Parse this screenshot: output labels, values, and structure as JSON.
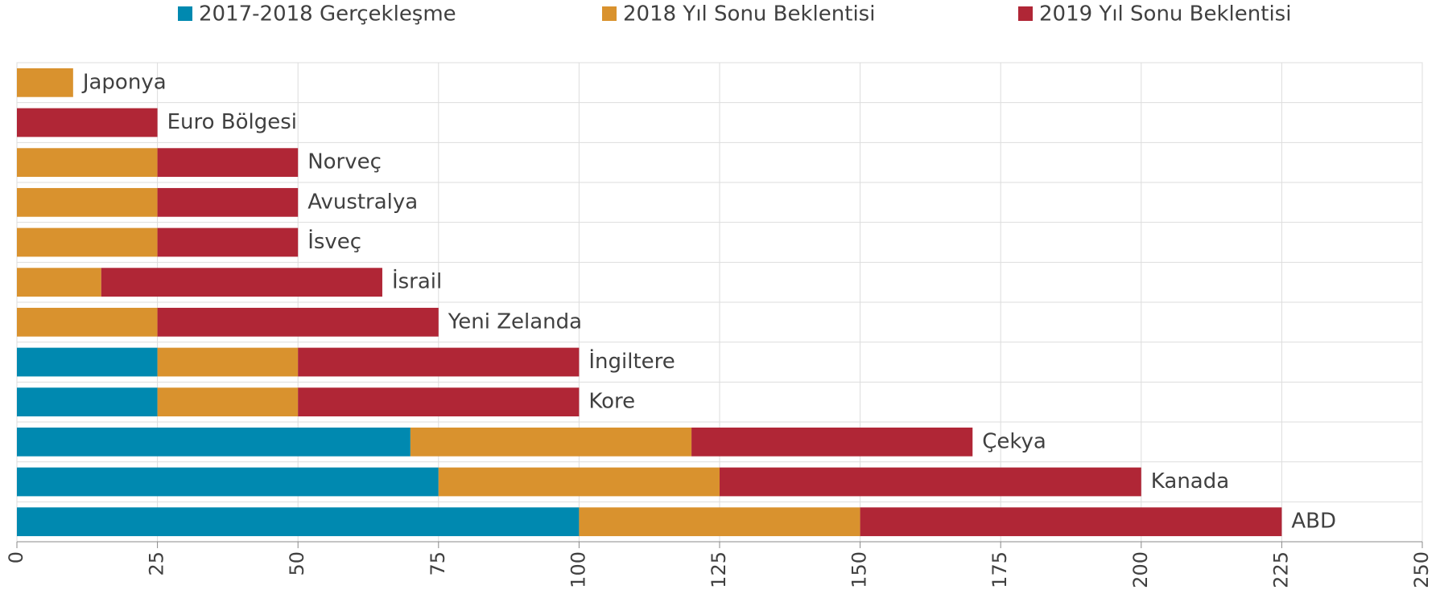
{
  "chart_data": {
    "type": "stacked-barh",
    "categories": [
      "Japonya",
      "Euro Bölgesi",
      "Norveç",
      "Avustralya",
      "İsveç",
      "İsrail",
      "Yeni Zelanda",
      "İngiltere",
      "Kore",
      "Çekya",
      "Kanada",
      "ABD"
    ],
    "series": [
      {
        "name": "2017-2018 Gerçekleşme",
        "color": "#0089b0",
        "values": [
          0,
          0,
          0,
          0,
          0,
          0,
          0,
          25,
          25,
          70,
          75,
          100
        ]
      },
      {
        "name": "2018 Yıl Sonu Beklentisi",
        "color": "#d9922e",
        "values": [
          10,
          0,
          25,
          25,
          25,
          15,
          25,
          25,
          25,
          50,
          50,
          50
        ]
      },
      {
        "name": "2019 Yıl Sonu Beklentisi",
        "color": "#b02636",
        "values": [
          0,
          25,
          25,
          25,
          25,
          50,
          50,
          50,
          50,
          50,
          75,
          75
        ]
      }
    ],
    "xlim": [
      0,
      250
    ],
    "xticks": [
      0,
      25,
      50,
      75,
      100,
      125,
      150,
      175,
      200,
      225,
      250
    ],
    "grid": true
  }
}
